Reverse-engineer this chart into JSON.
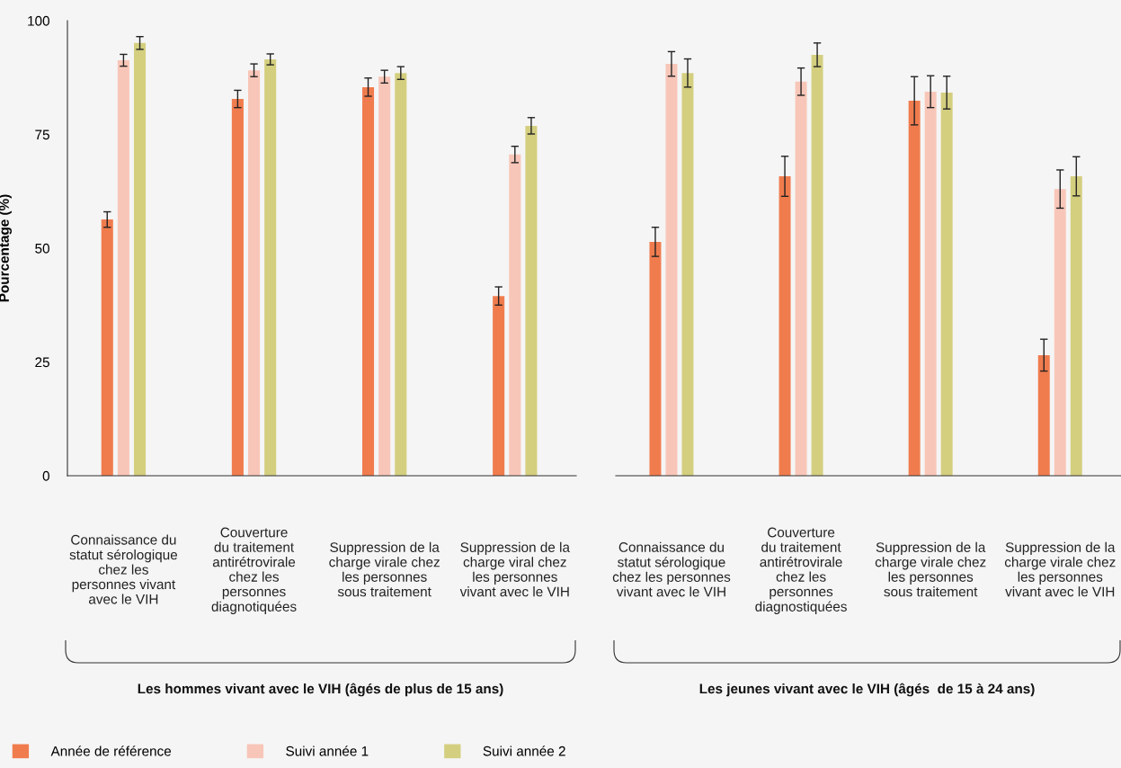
{
  "chart_data": [
    {
      "type": "bar",
      "title": "Les hommes vivant avec le VIH (âgés de plus de 15 ans)",
      "ylabel": "Pourcentage (%)",
      "categories": [
        "Connaissance du\nstatut sérologique\nchez les\npersonnes vivant\navec le VIH",
        "Couverture\ndu traitement\nantirétrovirale\nchez les\npersonnes\ndiagnotiquées",
        "Suppression de la\ncharge virale chez\nles personnes\nsous traitement",
        "Suppression de la\ncharge viral chez\nles personnes\nvivant avec le VIH"
      ],
      "series": [
        {
          "name": "Année de référence",
          "color": "#f07c4e",
          "values": [
            56.3,
            82.8,
            85.4,
            39.5
          ],
          "errors": [
            1.7,
            1.9,
            2.0,
            2.0
          ]
        },
        {
          "name": "Suivi année 1",
          "color": "#f8c6b8",
          "values": [
            91.3,
            89.1,
            87.7,
            70.6
          ],
          "errors": [
            1.3,
            1.4,
            1.4,
            1.8
          ]
        },
        {
          "name": "Suivi année 2",
          "color": "#d4cf7f",
          "values": [
            95.1,
            91.5,
            88.5,
            76.9
          ],
          "errors": [
            1.4,
            1.2,
            1.4,
            1.8
          ]
        }
      ],
      "ylim": [
        0,
        100
      ],
      "yticks": [
        0,
        25,
        50,
        75,
        100
      ],
      "grid": false,
      "legend": "bottom left"
    },
    {
      "type": "bar",
      "title": "Les jeunes vivant avec le VIH (âgés  de 15 à 24 ans)",
      "categories": [
        "Connaissance du\nstatut sérologique\nchez les personnes\nvivant avec le VIH",
        "Couverture\ndu traitement\nantirétrovirale\nchez les\npersonnes\ndiagnostiquées",
        "Suppression de la\ncharge virale chez\nles personnes\nsous traitement",
        "Suppression de la\ncharge virale chez\nles personnes\nvivant avec le VIH"
      ],
      "series": [
        {
          "color": "#f07c4e",
          "values": [
            51.4,
            65.8,
            82.4,
            26.5
          ],
          "errors": [
            3.2,
            4.4,
            5.3,
            3.5
          ]
        },
        {
          "color": "#f8c6b8",
          "values": [
            90.5,
            86.6,
            84.4,
            63.0
          ],
          "errors": [
            2.7,
            3.0,
            3.5,
            4.2
          ]
        },
        {
          "color": "#d4cf7f",
          "values": [
            88.5,
            92.5,
            84.2,
            65.8
          ],
          "errors": [
            3.1,
            2.6,
            3.6,
            4.3
          ]
        }
      ],
      "ylim": [
        0,
        100
      ],
      "tick_labels": "x",
      "grid": false
    }
  ]
}
